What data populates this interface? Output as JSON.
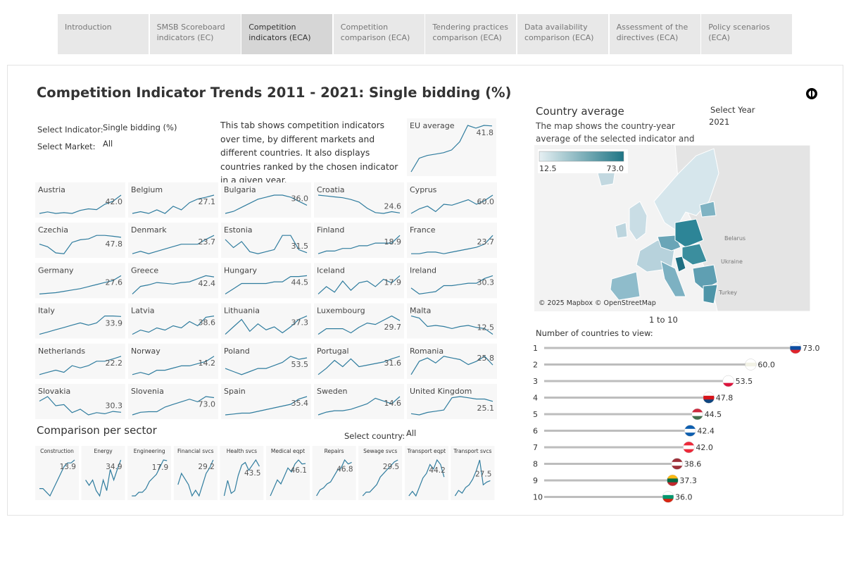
{
  "nav": [
    "Introduction",
    "SMSB Scoreboard indicators (EC)",
    "Competition indicators (ECA)",
    "Competition comparison (ECA)",
    "Tendering practices comparison (ECA)",
    "Data availability comparison (ECA)",
    "Assessment of the directives (ECA)",
    "Policy scenarios (ECA)"
  ],
  "active_tab": 2,
  "title": "Competition Indicator Trends 2011 - 2021: Single bidding (%)",
  "filters": {
    "indicator_label": "Select Indicator:",
    "indicator": "Single bidding (%)",
    "market_label": "Select Market:",
    "market": "All"
  },
  "description": "This tab shows competition indicators over time, by different markets and different countries. It also displays countries ranked by the chosen indicator in a given year.",
  "line_color": "#2f7c9e",
  "eu_average": {
    "name": "EU average",
    "values": [
      25,
      30,
      31,
      31.5,
      32,
      33,
      36,
      42,
      41,
      42,
      41.8
    ]
  },
  "countries": [
    {
      "name": "Austria",
      "values": [
        30,
        31,
        30,
        30.5,
        30,
        32,
        33,
        32.5,
        36,
        38,
        42
      ],
      "value_labels": [
        null,
        null,
        null,
        null,
        null,
        null,
        null,
        null,
        null,
        null,
        "42.0"
      ]
    },
    {
      "name": "Belgium",
      "values": [
        22,
        22.5,
        22,
        23,
        22,
        24,
        23,
        25,
        26,
        26.5,
        27.1
      ]
    },
    {
      "name": "Bulgaria",
      "values": [
        32,
        33,
        35,
        37,
        39,
        40,
        41,
        41,
        40,
        38,
        36
      ],
      "value_labels": [
        null,
        null,
        null,
        null,
        null,
        null,
        null,
        null,
        null,
        null,
        "36.0"
      ]
    },
    {
      "name": "Croatia",
      "values": [
        45,
        44,
        43,
        42,
        40,
        37,
        30,
        25,
        24,
        26,
        24.6
      ]
    },
    {
      "name": "Cyprus",
      "values": [
        40,
        45,
        48,
        42,
        50,
        49,
        52,
        55,
        50,
        54,
        60
      ],
      "value_labels": [
        null,
        null,
        null,
        null,
        null,
        null,
        null,
        null,
        null,
        null,
        "60.0"
      ]
    },
    {
      "name": "Czechia",
      "values": [
        40,
        37,
        30,
        29,
        42,
        45,
        46,
        50,
        50,
        49,
        47.8
      ]
    },
    {
      "name": "Denmark",
      "values": [
        16,
        17,
        16,
        17,
        18,
        19,
        20,
        20,
        20,
        22,
        23.7
      ]
    },
    {
      "name": "Estonia",
      "values": [
        38,
        34,
        37,
        32,
        31,
        32,
        33,
        40,
        40,
        33,
        31.5
      ]
    },
    {
      "name": "Finland",
      "values": [
        12,
        13,
        13,
        14,
        14,
        15,
        15,
        16,
        16,
        16,
        18.9
      ]
    },
    {
      "name": "France",
      "values": [
        18,
        18,
        18.5,
        18.5,
        18,
        18.5,
        19,
        19.5,
        20,
        21,
        23.7
      ]
    },
    {
      "name": "Germany",
      "values": [
        14,
        14.5,
        15,
        16,
        17,
        18,
        19.5,
        21,
        22.5,
        24,
        27.6
      ]
    },
    {
      "name": "Greece",
      "values": [
        20,
        30,
        32,
        35,
        34,
        33,
        35,
        36,
        40,
        44,
        42.4
      ]
    },
    {
      "name": "Hungary",
      "values": [
        34,
        37,
        40,
        40,
        40,
        40,
        41,
        41,
        44,
        44,
        44.5
      ]
    },
    {
      "name": "Iceland",
      "values": [
        8,
        12,
        9,
        15,
        10,
        14,
        15,
        12,
        16,
        14,
        17.9
      ]
    },
    {
      "name": "Ireland",
      "values": [
        20,
        15,
        16,
        17,
        22,
        22,
        23,
        24,
        24,
        28,
        30.3
      ]
    },
    {
      "name": "Italy",
      "values": [
        30,
        30.5,
        31,
        31.5,
        32,
        32.5,
        32,
        32.5,
        34,
        34,
        33.9
      ]
    },
    {
      "name": "Latvia",
      "values": [
        30,
        32,
        31,
        33,
        32,
        34,
        33,
        36,
        34,
        38,
        38.6
      ]
    },
    {
      "name": "Lithuania",
      "values": [
        25,
        30,
        35,
        27,
        32,
        28,
        30,
        26,
        30,
        35,
        37.3
      ]
    },
    {
      "name": "Luxembourg",
      "values": [
        20,
        24,
        24,
        24,
        21,
        25,
        28,
        27,
        30,
        33,
        29.7
      ]
    },
    {
      "name": "Malta",
      "values": [
        30,
        28,
        20,
        21,
        20,
        18,
        20,
        21,
        19,
        18,
        12.5
      ]
    },
    {
      "name": "Netherlands",
      "values": [
        14,
        15,
        16,
        15,
        18,
        17,
        18,
        20,
        20,
        21,
        22.2
      ]
    },
    {
      "name": "Norway",
      "values": [
        10,
        10.5,
        10,
        11,
        11,
        11.5,
        12,
        12,
        12.5,
        13,
        14.2
      ]
    },
    {
      "name": "Poland",
      "values": [
        50,
        49,
        48,
        49,
        50,
        50,
        51,
        52,
        54,
        53,
        53.5
      ]
    },
    {
      "name": "Portugal",
      "values": [
        20,
        24,
        29,
        25,
        30,
        25,
        26,
        27,
        28,
        30,
        31.6
      ]
    },
    {
      "name": "Romania",
      "values": [
        20,
        28,
        30,
        27,
        31,
        30,
        29,
        26,
        28,
        31,
        25.8
      ]
    },
    {
      "name": "Slovakia",
      "values": [
        40,
        44,
        36,
        37,
        30,
        33,
        28,
        30,
        29,
        31,
        30.3
      ]
    },
    {
      "name": "Slovenia",
      "values": [
        40,
        45,
        46,
        46,
        55,
        60,
        65,
        70,
        65,
        75,
        73
      ],
      "value_labels": [
        null,
        null,
        null,
        null,
        null,
        null,
        null,
        null,
        null,
        null,
        "73.0"
      ]
    },
    {
      "name": "Spain",
      "values": [
        25,
        25.5,
        26,
        26,
        27,
        28,
        29,
        30,
        31,
        34,
        35.4
      ]
    },
    {
      "name": "Sweden",
      "values": [
        8,
        9,
        9.5,
        9.5,
        10,
        11,
        12,
        14,
        13,
        12,
        14.6
      ]
    },
    {
      "name": "United Kingdom",
      "values": [
        15,
        14,
        16,
        17,
        18,
        28,
        29,
        28,
        27,
        27,
        25.1
      ]
    }
  ],
  "sector_title": "Comparison per sector",
  "country_filter_label": "Select country:",
  "country_filter": "All",
  "sectors": [
    {
      "name": "Construction",
      "values": [
        10,
        10,
        9.5,
        9,
        10,
        11,
        12,
        13,
        13.5,
        13.5,
        13.9
      ]
    },
    {
      "name": "Energy",
      "values": [
        33,
        32.5,
        33,
        32,
        31.5,
        33,
        32,
        34,
        33,
        34,
        34.9
      ]
    },
    {
      "name": "Engineering",
      "values": [
        13,
        13,
        13.5,
        13.5,
        14,
        15,
        15.5,
        16,
        17,
        18,
        17.9
      ]
    },
    {
      "name": "Financial svcs",
      "values": [
        27,
        28,
        27.5,
        27,
        26,
        26.5,
        26,
        27,
        28,
        28.5,
        29.2
      ]
    },
    {
      "name": "Health svcs",
      "values": [
        32,
        38,
        33,
        34,
        40,
        44,
        45,
        42,
        44,
        46,
        43.5
      ]
    },
    {
      "name": "Medical eqpt",
      "values": [
        38,
        40,
        42,
        41,
        43,
        45,
        44,
        46,
        47,
        46,
        46.1
      ]
    },
    {
      "name": "Repairs",
      "values": [
        30,
        33,
        34,
        36,
        37,
        40,
        43,
        44,
        48,
        46,
        46.8
      ]
    },
    {
      "name": "Sewage svcs",
      "values": [
        20,
        21,
        21,
        22,
        23,
        25,
        26,
        27,
        28,
        29,
        29.5
      ]
    },
    {
      "name": "Transport eqpt",
      "values": [
        40,
        41,
        40,
        42,
        44,
        45,
        47,
        46,
        48,
        47,
        44.2
      ]
    },
    {
      "name": "Transport svcs",
      "values": [
        22,
        24,
        23,
        25,
        26,
        28,
        31,
        35,
        26,
        27,
        27.5
      ]
    }
  ],
  "map": {
    "title": "Country average",
    "description": "The map shows the country-year average of the selected indicator and market.",
    "year_label": "Select Year",
    "year": "2021",
    "legend": [
      12.5,
      {
        "value": 73,
        "label": "73.0"
      }
    ],
    "legend_colors": [
      "#e6f0f3",
      "#1f7585"
    ],
    "places": [
      "Belarus",
      "Ukraine",
      "Turkey"
    ],
    "credit": "© 2025 Mapbox © OpenStreetMap"
  },
  "ranking": {
    "range": "1 to 10",
    "label": "Number of countries to view:",
    "ranks": [
      1,
      2,
      3,
      4,
      5,
      6,
      7,
      8,
      9,
      10
    ],
    "values": [
      73,
      60,
      53.5,
      47.8,
      44.5,
      42.4,
      42,
      38.6,
      37.3,
      36
    ],
    "value_labels": [
      "73.0",
      "60.0",
      "53.5",
      "47.8",
      "44.5",
      "42.4",
      "42.0",
      "38.6",
      "37.3",
      "36.0"
    ],
    "flags": [
      [
        "#ffffff",
        "#0c4da2",
        "#e0232b"
      ],
      [
        "#ffffff",
        "#f2f2e6",
        "#ffffff"
      ],
      [
        "#ffffff",
        "#ffffff",
        "#dc143c"
      ],
      [
        "#ffffff",
        "#d7141a",
        "#11457e"
      ],
      [
        "#cd2a3e",
        "#ffffff",
        "#436f4d"
      ],
      [
        "#0d5eaf",
        "#ffffff",
        "#0d5eaf"
      ],
      [
        "#ed2939",
        "#ffffff",
        "#ed2939"
      ],
      [
        "#9e3039",
        "#ffffff",
        "#9e3039"
      ],
      [
        "#fdb913",
        "#006a44",
        "#c1272d"
      ],
      [
        "#ffffff",
        "#00966e",
        "#d62612"
      ]
    ]
  }
}
